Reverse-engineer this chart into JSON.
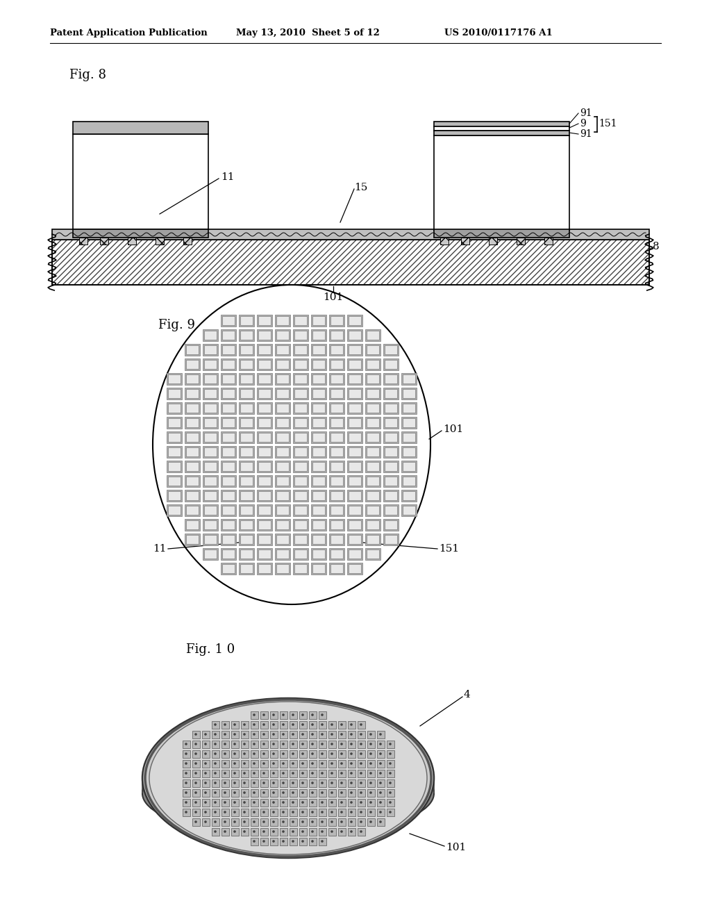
{
  "header_left": "Patent Application Publication",
  "header_mid": "May 13, 2010  Sheet 5 of 12",
  "header_right": "US 2010/0117176 A1",
  "fig8_label": "Fig. 8",
  "fig9_label": "Fig. 9",
  "fig10_label": "Fig. 1 0",
  "background": "#ffffff",
  "line_color": "#000000"
}
